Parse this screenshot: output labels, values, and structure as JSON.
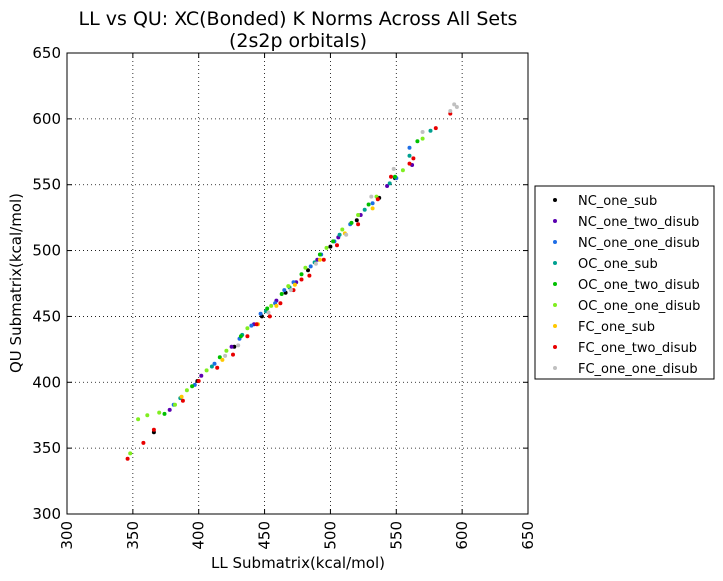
{
  "chart_data": {
    "type": "scatter",
    "title": "LL vs QU: XC(Bonded) K Norms Across All Sets",
    "subtitle": "(2s2p orbitals)",
    "xlabel": "LL Submatrix(kcal/mol)",
    "ylabel": "QU Submatrix(kcal/mol)",
    "xlim": [
      300,
      650
    ],
    "ylim": [
      300,
      650
    ],
    "xticks": [
      "300",
      "350",
      "400",
      "450",
      "500",
      "550",
      "600",
      "650"
    ],
    "yticks": [
      "300",
      "350",
      "400",
      "450",
      "500",
      "550",
      "600",
      "650"
    ],
    "grid": true,
    "legend_position": "outside-right",
    "series": [
      {
        "name": "NC_one_sub",
        "color": "#000000",
        "points": [
          [
            366,
            362
          ],
          [
            399,
            401
          ],
          [
            427,
            427
          ],
          [
            448,
            450
          ],
          [
            466,
            468
          ],
          [
            483,
            485
          ],
          [
            500,
            503
          ],
          [
            520,
            523
          ],
          [
            537,
            540
          ],
          [
            549,
            555
          ]
        ]
      },
      {
        "name": "NC_one_two_disub",
        "color": "#5a00b0",
        "points": [
          [
            378,
            379
          ],
          [
            402,
            405
          ],
          [
            425,
            427
          ],
          [
            442,
            444
          ],
          [
            459,
            462
          ],
          [
            474,
            476
          ],
          [
            490,
            493
          ],
          [
            506,
            510
          ],
          [
            523,
            527
          ],
          [
            543,
            549
          ],
          [
            562,
            565
          ]
        ]
      },
      {
        "name": "NC_one_one_disub",
        "color": "#1e6ee6",
        "points": [
          [
            381,
            383
          ],
          [
            397,
            398
          ],
          [
            412,
            414
          ],
          [
            431,
            433
          ],
          [
            440,
            443
          ],
          [
            447,
            452
          ],
          [
            458,
            460
          ],
          [
            465,
            470
          ],
          [
            472,
            476
          ],
          [
            485,
            488
          ],
          [
            493,
            497
          ],
          [
            503,
            507
          ],
          [
            515,
            520
          ],
          [
            532,
            536
          ],
          [
            550,
            555
          ],
          [
            560,
            578
          ]
        ]
      },
      {
        "name": "OC_one_sub",
        "color": "#00a090",
        "points": [
          [
            386,
            388
          ],
          [
            410,
            412
          ],
          [
            433,
            436
          ],
          [
            451,
            454
          ],
          [
            469,
            472
          ],
          [
            488,
            491
          ],
          [
            507,
            512
          ],
          [
            526,
            531
          ],
          [
            545,
            551
          ],
          [
            560,
            572
          ],
          [
            576,
            591
          ]
        ]
      },
      {
        "name": "OC_one_two_disub",
        "color": "#00c000",
        "points": [
          [
            374,
            376
          ],
          [
            395,
            397
          ],
          [
            416,
            419
          ],
          [
            432,
            435
          ],
          [
            452,
            456
          ],
          [
            463,
            467
          ],
          [
            478,
            482
          ],
          [
            492,
            497
          ],
          [
            502,
            507
          ],
          [
            516,
            521
          ],
          [
            529,
            535
          ],
          [
            549,
            556
          ],
          [
            566,
            583
          ]
        ]
      },
      {
        "name": "OC_one_one_disub",
        "color": "#80ee20",
        "points": [
          [
            348,
            346
          ],
          [
            354,
            372
          ],
          [
            361,
            375
          ],
          [
            370,
            377
          ],
          [
            382,
            383
          ],
          [
            391,
            394
          ],
          [
            406,
            409
          ],
          [
            421,
            424
          ],
          [
            437,
            441
          ],
          [
            455,
            458
          ],
          [
            468,
            473
          ],
          [
            481,
            487
          ],
          [
            497,
            502
          ],
          [
            509,
            516
          ],
          [
            521,
            527
          ],
          [
            535,
            541
          ],
          [
            555,
            561
          ],
          [
            570,
            585
          ]
        ]
      },
      {
        "name": "FC_one_sub",
        "color": "#ffc800",
        "points": [
          [
            387,
            389
          ],
          [
            418,
            417
          ],
          [
            445,
            444
          ],
          [
            459,
            458
          ],
          [
            473,
            474
          ],
          [
            492,
            493
          ],
          [
            511,
            513
          ],
          [
            532,
            532
          ]
        ]
      },
      {
        "name": "FC_one_two_disub",
        "color": "#e80000",
        "points": [
          [
            346,
            342
          ],
          [
            358,
            354
          ],
          [
            366,
            364
          ],
          [
            388,
            386
          ],
          [
            400,
            401
          ],
          [
            414,
            411
          ],
          [
            426,
            421
          ],
          [
            437,
            435
          ],
          [
            444,
            444
          ],
          [
            454,
            450
          ],
          [
            462,
            460
          ],
          [
            472,
            470
          ],
          [
            478,
            478
          ],
          [
            484,
            481
          ],
          [
            495,
            493
          ],
          [
            505,
            504
          ],
          [
            521,
            520
          ],
          [
            536,
            539
          ],
          [
            546,
            556
          ],
          [
            560,
            566
          ],
          [
            563,
            570
          ],
          [
            591,
            604
          ],
          [
            580,
            593
          ]
        ]
      },
      {
        "name": "FC_one_one_disub",
        "color": "#c0c0c0",
        "points": [
          [
            420,
            420
          ],
          [
            430,
            428
          ],
          [
            453,
            453
          ],
          [
            470,
            470
          ],
          [
            489,
            490
          ],
          [
            512,
            512
          ],
          [
            531,
            541
          ],
          [
            548,
            562
          ],
          [
            570,
            590
          ],
          [
            591,
            606
          ],
          [
            594,
            611
          ],
          [
            596,
            609
          ]
        ]
      }
    ]
  }
}
